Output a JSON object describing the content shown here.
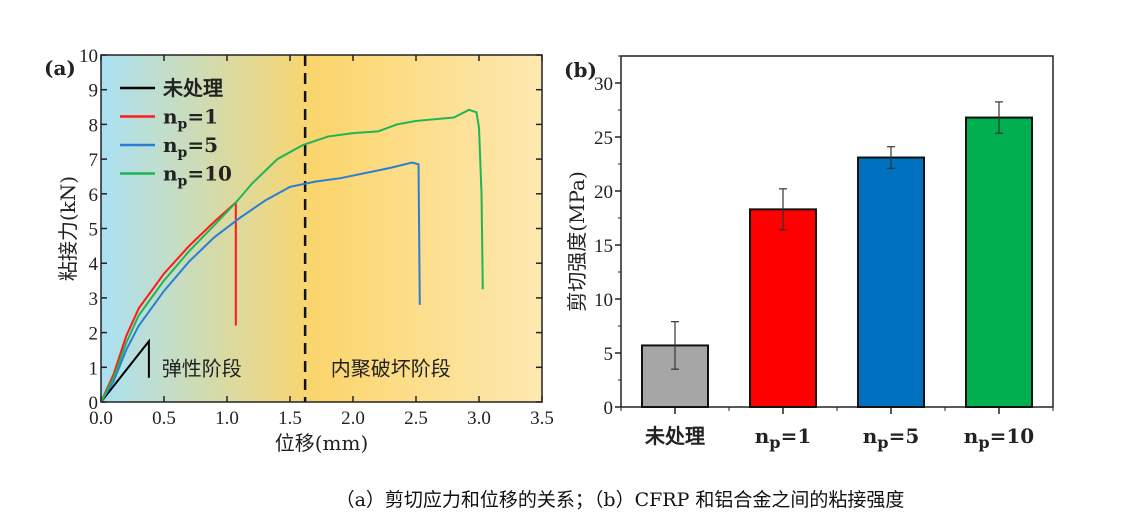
{
  "caption": "（a）剪切应力和位移的关系；（b）CFRP 和铝合金之间的粘接强度",
  "chart_data": [
    {
      "type": "line",
      "panel_label": "(a)",
      "xlabel": "位移(mm)",
      "ylabel": "粘接力(kN)",
      "xlim": [
        0,
        3.5
      ],
      "ylim": [
        0,
        10
      ],
      "xticks": [
        "0.0",
        "0.5",
        "1.0",
        "1.5",
        "2.0",
        "2.5",
        "3.0",
        "3.5"
      ],
      "yticks": [
        "0",
        "1",
        "2",
        "3",
        "4",
        "5",
        "6",
        "7",
        "8",
        "9",
        "10"
      ],
      "legend_position": "top-left",
      "divider_x": 1.62,
      "annotations": [
        {
          "text": "弹性阶段",
          "x": 0.8,
          "y": 1.0
        },
        {
          "text": "内聚破坏阶段",
          "x": 2.3,
          "y": 1.0
        }
      ],
      "series": [
        {
          "name": "未处理",
          "color": "#000000",
          "points": [
            [
              0,
              0
            ],
            [
              0.38,
              1.75
            ],
            [
              0.38,
              0.7
            ]
          ]
        },
        {
          "name": "n_p=1",
          "color": "#ff1a1a",
          "points": [
            [
              0,
              0
            ],
            [
              0.1,
              0.8
            ],
            [
              0.2,
              1.9
            ],
            [
              0.3,
              2.7
            ],
            [
              0.5,
              3.7
            ],
            [
              0.7,
              4.5
            ],
            [
              0.9,
              5.2
            ],
            [
              1.07,
              5.75
            ],
            [
              1.07,
              2.2
            ]
          ]
        },
        {
          "name": "n_p=5",
          "color": "#2a7fd4",
          "points": [
            [
              0,
              0
            ],
            [
              0.1,
              0.6
            ],
            [
              0.2,
              1.5
            ],
            [
              0.3,
              2.2
            ],
            [
              0.5,
              3.2
            ],
            [
              0.7,
              4.05
            ],
            [
              0.9,
              4.75
            ],
            [
              1.1,
              5.3
            ],
            [
              1.3,
              5.8
            ],
            [
              1.5,
              6.2
            ],
            [
              1.7,
              6.35
            ],
            [
              1.9,
              6.45
            ],
            [
              2.1,
              6.6
            ],
            [
              2.3,
              6.75
            ],
            [
              2.47,
              6.9
            ],
            [
              2.52,
              6.85
            ],
            [
              2.53,
              2.8
            ]
          ]
        },
        {
          "name": "n_p=10",
          "color": "#1fb557",
          "points": [
            [
              0,
              0
            ],
            [
              0.1,
              0.7
            ],
            [
              0.2,
              1.7
            ],
            [
              0.3,
              2.5
            ],
            [
              0.5,
              3.5
            ],
            [
              0.7,
              4.35
            ],
            [
              0.9,
              5.1
            ],
            [
              1.07,
              5.75
            ],
            [
              1.2,
              6.3
            ],
            [
              1.4,
              7.0
            ],
            [
              1.6,
              7.4
            ],
            [
              1.8,
              7.65
            ],
            [
              2.0,
              7.75
            ],
            [
              2.2,
              7.8
            ],
            [
              2.35,
              8.0
            ],
            [
              2.5,
              8.1
            ],
            [
              2.8,
              8.2
            ],
            [
              2.92,
              8.42
            ],
            [
              2.98,
              8.35
            ],
            [
              3.0,
              7.9
            ],
            [
              3.02,
              6.0
            ],
            [
              3.03,
              3.25
            ]
          ]
        }
      ],
      "background": {
        "left_color": "#a9e1f3",
        "middle_color": "#fbd56c",
        "right_color": "#fde8b0"
      }
    },
    {
      "type": "bar",
      "panel_label": "(b)",
      "xlabel": "",
      "ylabel": "剪切强度(MPa)",
      "ylim": [
        0,
        32.5
      ],
      "yticks": [
        "0",
        "5",
        "10",
        "15",
        "20",
        "25",
        "30"
      ],
      "categories": [
        "未处理",
        "n_p=1",
        "n_p=5",
        "n_p=10"
      ],
      "values": [
        5.7,
        18.3,
        23.1,
        26.8
      ],
      "errors": [
        2.2,
        1.9,
        1.0,
        1.45
      ],
      "colors": [
        "#a6a6a6",
        "#ff0000",
        "#0070c0",
        "#00b050"
      ]
    }
  ]
}
